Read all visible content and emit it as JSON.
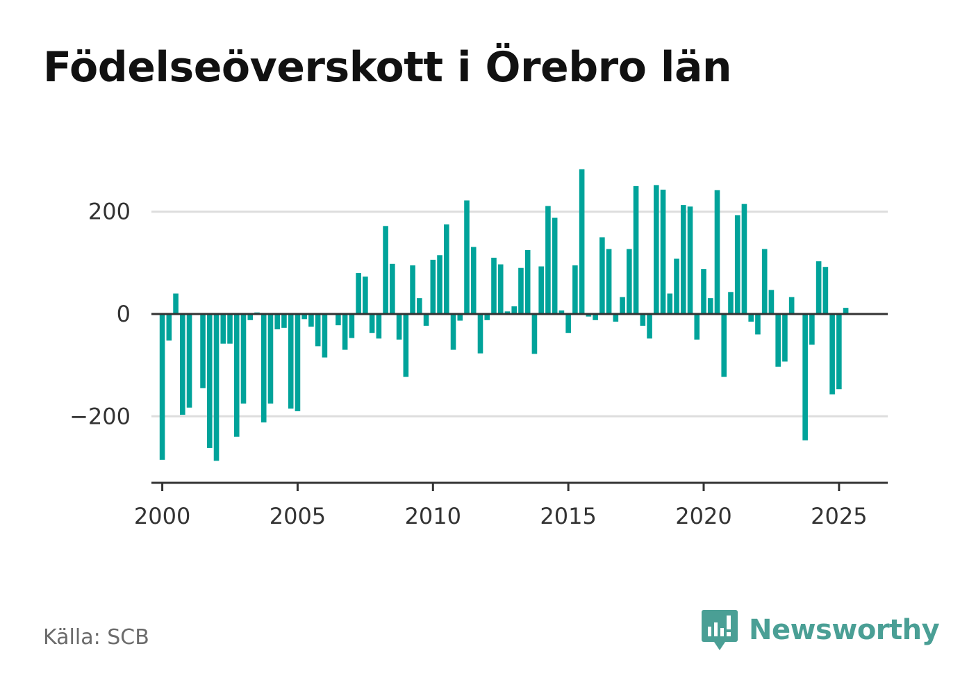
{
  "title": "Födelseöverskott i Örebro län",
  "source": "Källa: SCB",
  "brand": {
    "name": "Newsworthy",
    "icon": "newsworthy-logo-icon"
  },
  "colors": {
    "bar": "#00a39a",
    "grid": "#dddddd",
    "axis": "#333333",
    "brand": "#4a9f95"
  },
  "chart_data": {
    "type": "bar",
    "ylim": [
      -330,
      315
    ],
    "xlim": [
      1999.6,
      2026.8
    ],
    "yticks": [
      {
        "value": 200,
        "label": "200"
      },
      {
        "value": 0,
        "label": "0"
      },
      {
        "value": -200,
        "label": "−200"
      }
    ],
    "xticks": [
      {
        "value": 2000,
        "label": "2000"
      },
      {
        "value": 2005,
        "label": "2005"
      },
      {
        "value": 2010,
        "label": "2010"
      },
      {
        "value": 2015,
        "label": "2015"
      },
      {
        "value": 2020,
        "label": "2020"
      },
      {
        "value": 2025,
        "label": "2025"
      }
    ],
    "grid": true,
    "start_year": 2000,
    "periods_per_year": 4,
    "values": [
      -285,
      -52,
      40,
      -197,
      -183,
      -2,
      -145,
      -262,
      -287,
      -58,
      -58,
      -240,
      -175,
      -12,
      3,
      -212,
      -175,
      -30,
      -27,
      -185,
      -190,
      -10,
      -25,
      -63,
      -85,
      0,
      -22,
      -70,
      -47,
      80,
      73,
      -37,
      -48,
      172,
      98,
      -50,
      -123,
      95,
      31,
      -23,
      106,
      115,
      175,
      -70,
      -13,
      222,
      131,
      -77,
      -12,
      110,
      97,
      5,
      15,
      90,
      125,
      -78,
      93,
      211,
      188,
      7,
      -37,
      95,
      283,
      -5,
      -12,
      150,
      127,
      -15,
      33,
      127,
      250,
      -23,
      -48,
      252,
      243,
      40,
      108,
      213,
      210,
      -50,
      88,
      31,
      242,
      -123,
      43,
      193,
      215,
      -15,
      -40,
      127,
      47,
      -103,
      -93,
      33,
      2,
      -247,
      -60,
      103,
      92,
      -157,
      -147,
      12
    ]
  }
}
